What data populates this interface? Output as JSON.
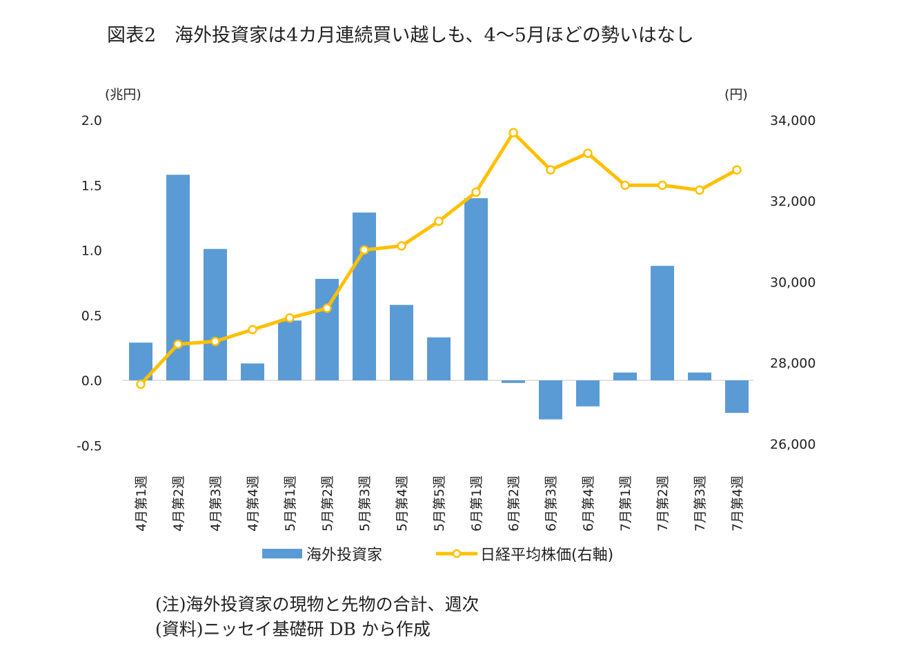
{
  "chart_data": {
    "type": "bar+line",
    "title": "図表2　海外投資家は4カ月連続買い越しも、4～5月ほどの勢いはなし",
    "left_unit": "(兆円)",
    "right_unit": "(円)",
    "left_ylim": [
      -0.5,
      2.0
    ],
    "left_ticks": [
      "2.0",
      "1.5",
      "1.0",
      "0.5",
      "0.0",
      "-0.5"
    ],
    "right_ylim": [
      26000,
      34000
    ],
    "right_ticks": [
      "34,000",
      "32,000",
      "30,000",
      "28,000",
      "26,000"
    ],
    "categories": [
      "4月第1週",
      "4月第2週",
      "4月第3週",
      "4月第4週",
      "5月第1週",
      "5月第2週",
      "5月第3週",
      "5月第4週",
      "5月第5週",
      "6月第1週",
      "6月第2週",
      "6月第3週",
      "6月第4週",
      "7月第1週",
      "7月第2週",
      "7月第3週",
      "7月第4週"
    ],
    "series": [
      {
        "name": "海外投資家",
        "type": "bar",
        "axis": "left",
        "color": "#5b9bd5",
        "values": [
          0.29,
          1.58,
          1.01,
          0.13,
          0.46,
          0.78,
          1.29,
          0.58,
          0.33,
          1.4,
          -0.02,
          -0.3,
          -0.2,
          0.06,
          0.88,
          0.06,
          -0.25
        ]
      },
      {
        "name": "日経平均株価(右軸)",
        "type": "line",
        "axis": "right",
        "color": "#ffc000",
        "values": [
          27470,
          28460,
          28530,
          28820,
          29110,
          29350,
          30790,
          30890,
          31500,
          32220,
          33690,
          32770,
          33180,
          32390,
          32390,
          32270,
          32770
        ]
      }
    ],
    "legend": "bottom",
    "grid": false
  },
  "notes": [
    "(注)海外投資家の現物と先物の合計、週次",
    "(資料)ニッセイ基礎研 DB から作成"
  ]
}
